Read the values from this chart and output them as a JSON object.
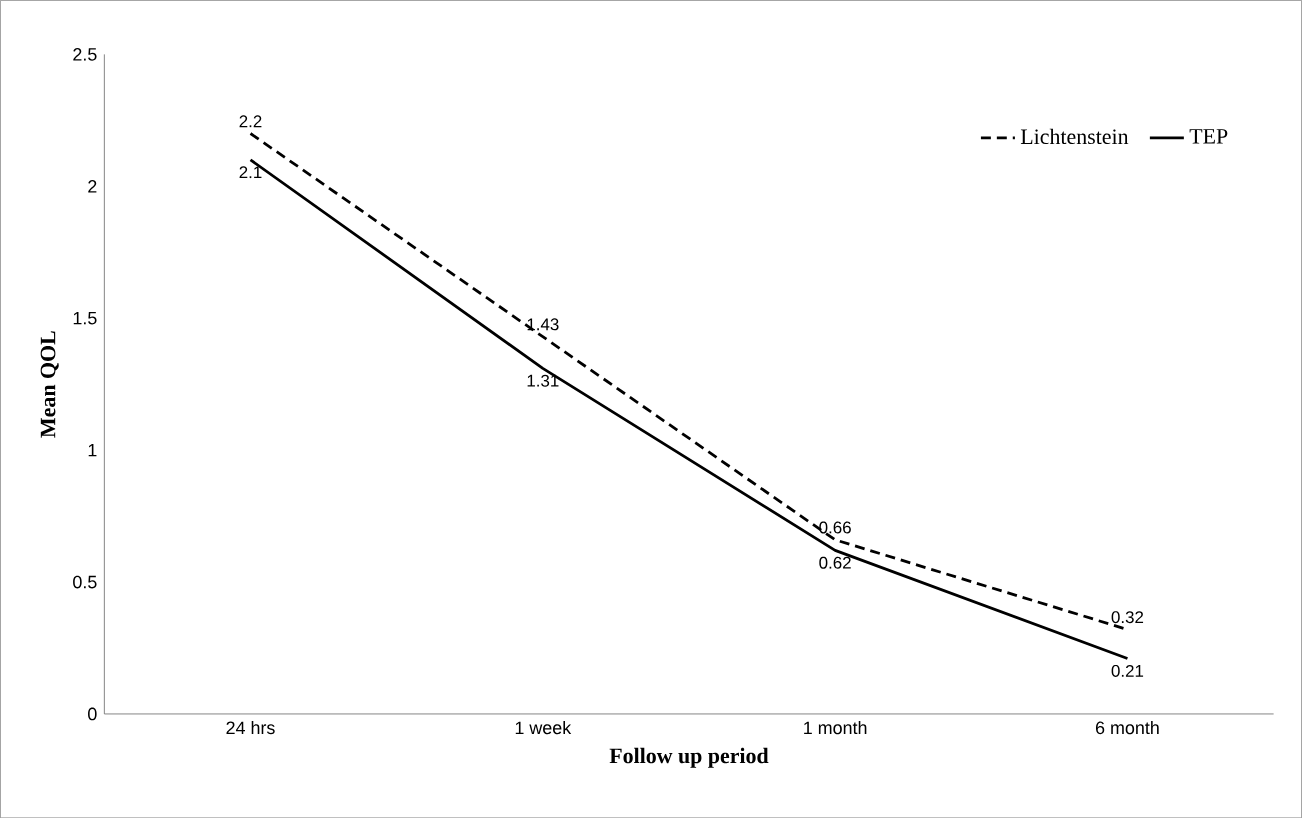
{
  "chart_data": {
    "type": "line",
    "xlabel": "Follow up period",
    "ylabel": "Mean QOL",
    "categories": [
      "24 hrs",
      "1 week",
      "1 month",
      "6 month"
    ],
    "series": [
      {
        "name": "Lichtenstein",
        "color": "#000000",
        "line_style": "dashed",
        "values": [
          2.2,
          1.43,
          0.66,
          0.32
        ]
      },
      {
        "name": "TEP",
        "color": "#000000",
        "line_style": "solid",
        "values": [
          2.1,
          1.31,
          0.62,
          0.21
        ]
      }
    ],
    "ylim": [
      0,
      2.5
    ],
    "yticks": [
      0,
      0.5,
      1,
      1.5,
      2,
      2.5
    ],
    "grid": false,
    "legend": "top right",
    "data_labels": true,
    "marker": "none"
  }
}
